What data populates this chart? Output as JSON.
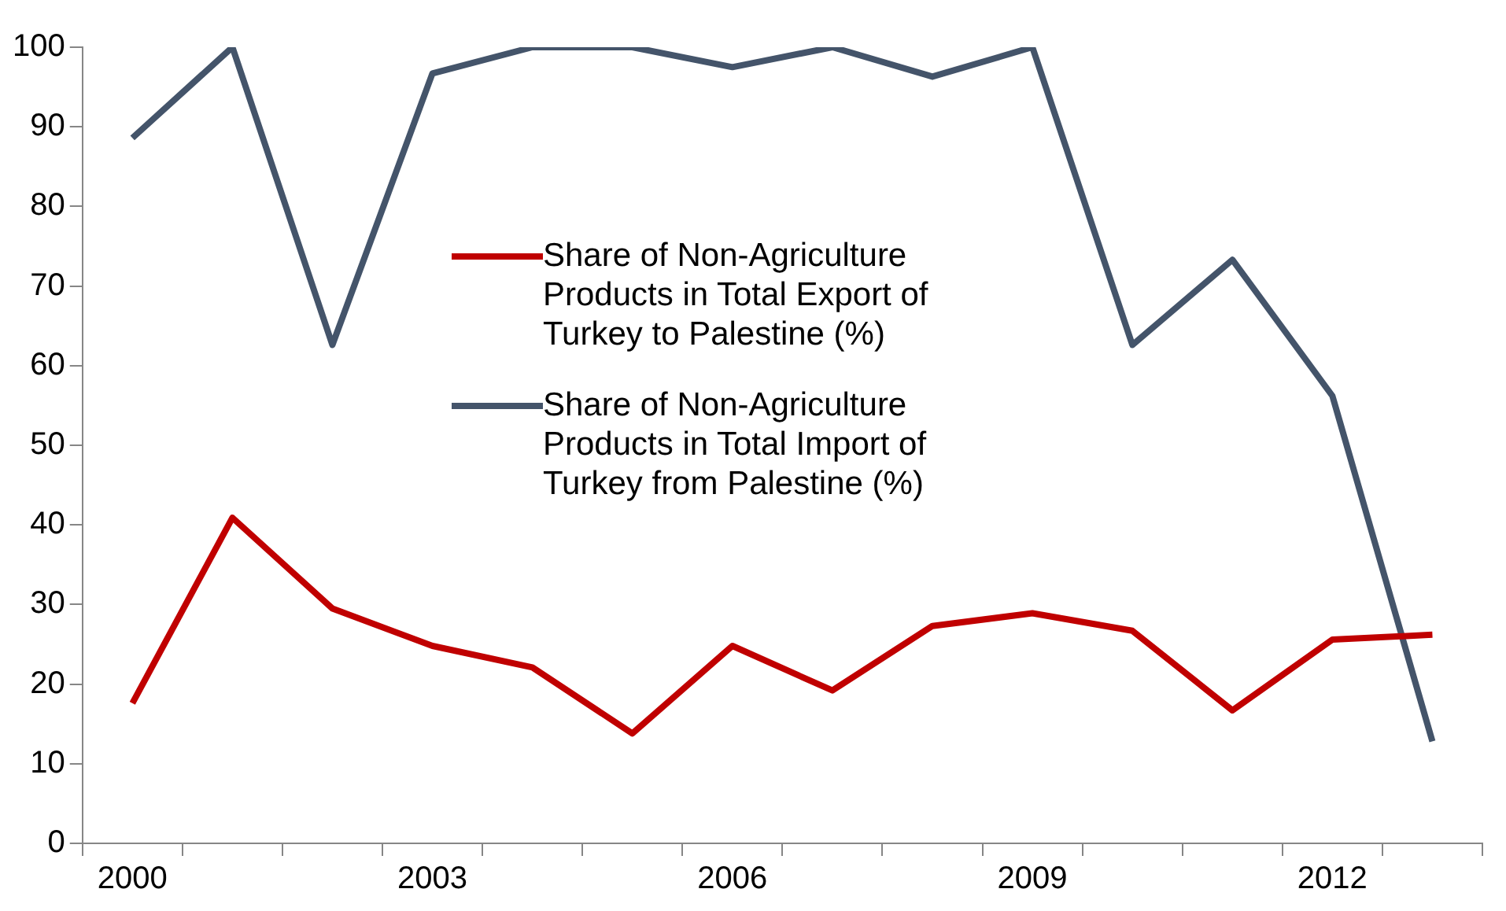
{
  "chart_data": {
    "type": "line",
    "categories": [
      "2000",
      null,
      null,
      "2003",
      null,
      null,
      "2006",
      null,
      null,
      "2009",
      null,
      null,
      "2012",
      null
    ],
    "series": [
      {
        "name": "Share of Non-Agriculture Products in Total Export of Turkey to Palestine (%)",
        "color": "#c00000",
        "values": [
          17.6,
          40.9,
          29.5,
          24.8,
          22.1,
          13.8,
          24.8,
          19.2,
          27.3,
          28.9,
          26.7,
          16.7,
          25.6,
          26.2
        ]
      },
      {
        "name": "Share of Non-Agriculture Products in Total Import of Turkey from Palestine (%)",
        "color": "#44546a",
        "values": [
          88.6,
          100,
          62.6,
          96.7,
          100,
          100,
          97.5,
          100,
          96.3,
          100,
          62.6,
          73.3,
          56.2,
          12.8
        ]
      }
    ],
    "ylim": [
      0,
      100
    ],
    "yticks": [
      0,
      10,
      20,
      30,
      40,
      50,
      60,
      70,
      80,
      90,
      100
    ],
    "grid": false,
    "legend": "center",
    "marker": "none",
    "line_style": "solid"
  }
}
